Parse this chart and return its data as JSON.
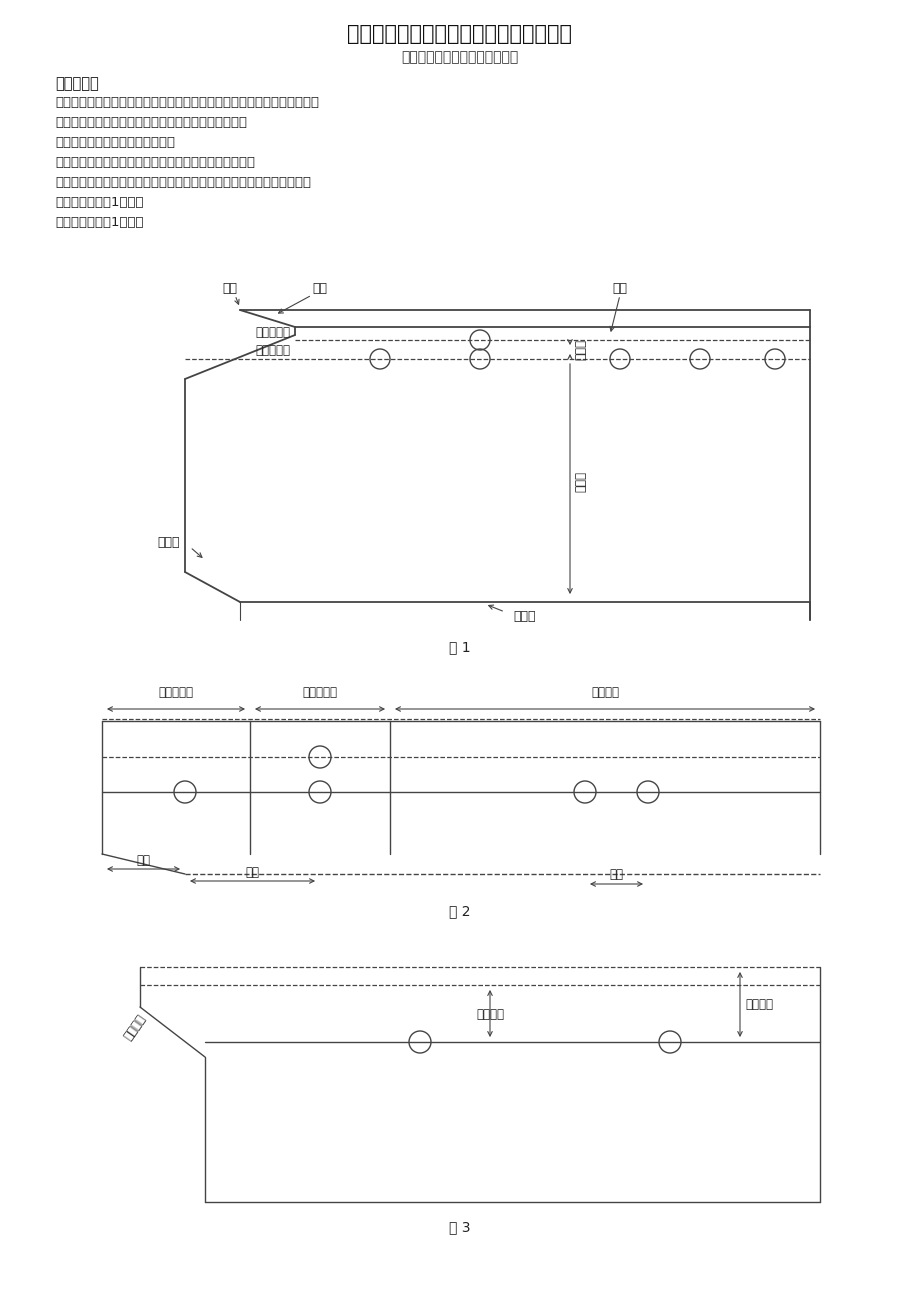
{
  "title": "铁塔绘图及放样软件初学者需掌握的概念",
  "subtitle": "（暂行、欢迎指出错误之处。）",
  "section_title": "角钢相关：",
  "lines": [
    "心线：螺栓孔布置在角钢肢的一条直线上，这条直线称之为心线又叫准线。",
    "楞线：角钢外皮相交的直线，又称角钢背或角钢劲线。",
    "楞点：构成角钢楞线的两个端点。",
    "楞线侧：在角钢肢平面内，心线向楞线的方向为楞线侧。",
    "肢边侧：在角钢肢平面内，心线向楞线的反方向为肢边侧，又叫肢翼侧。",
    "轧制边：如下图1所示。",
    "切角边：如下图1所示。"
  ],
  "fig1_label": "图 1",
  "fig2_label": "图 2",
  "fig3_label": "图 3",
  "bg_color": "#ffffff",
  "line_color": "#444444",
  "dashed_color": "#444444"
}
